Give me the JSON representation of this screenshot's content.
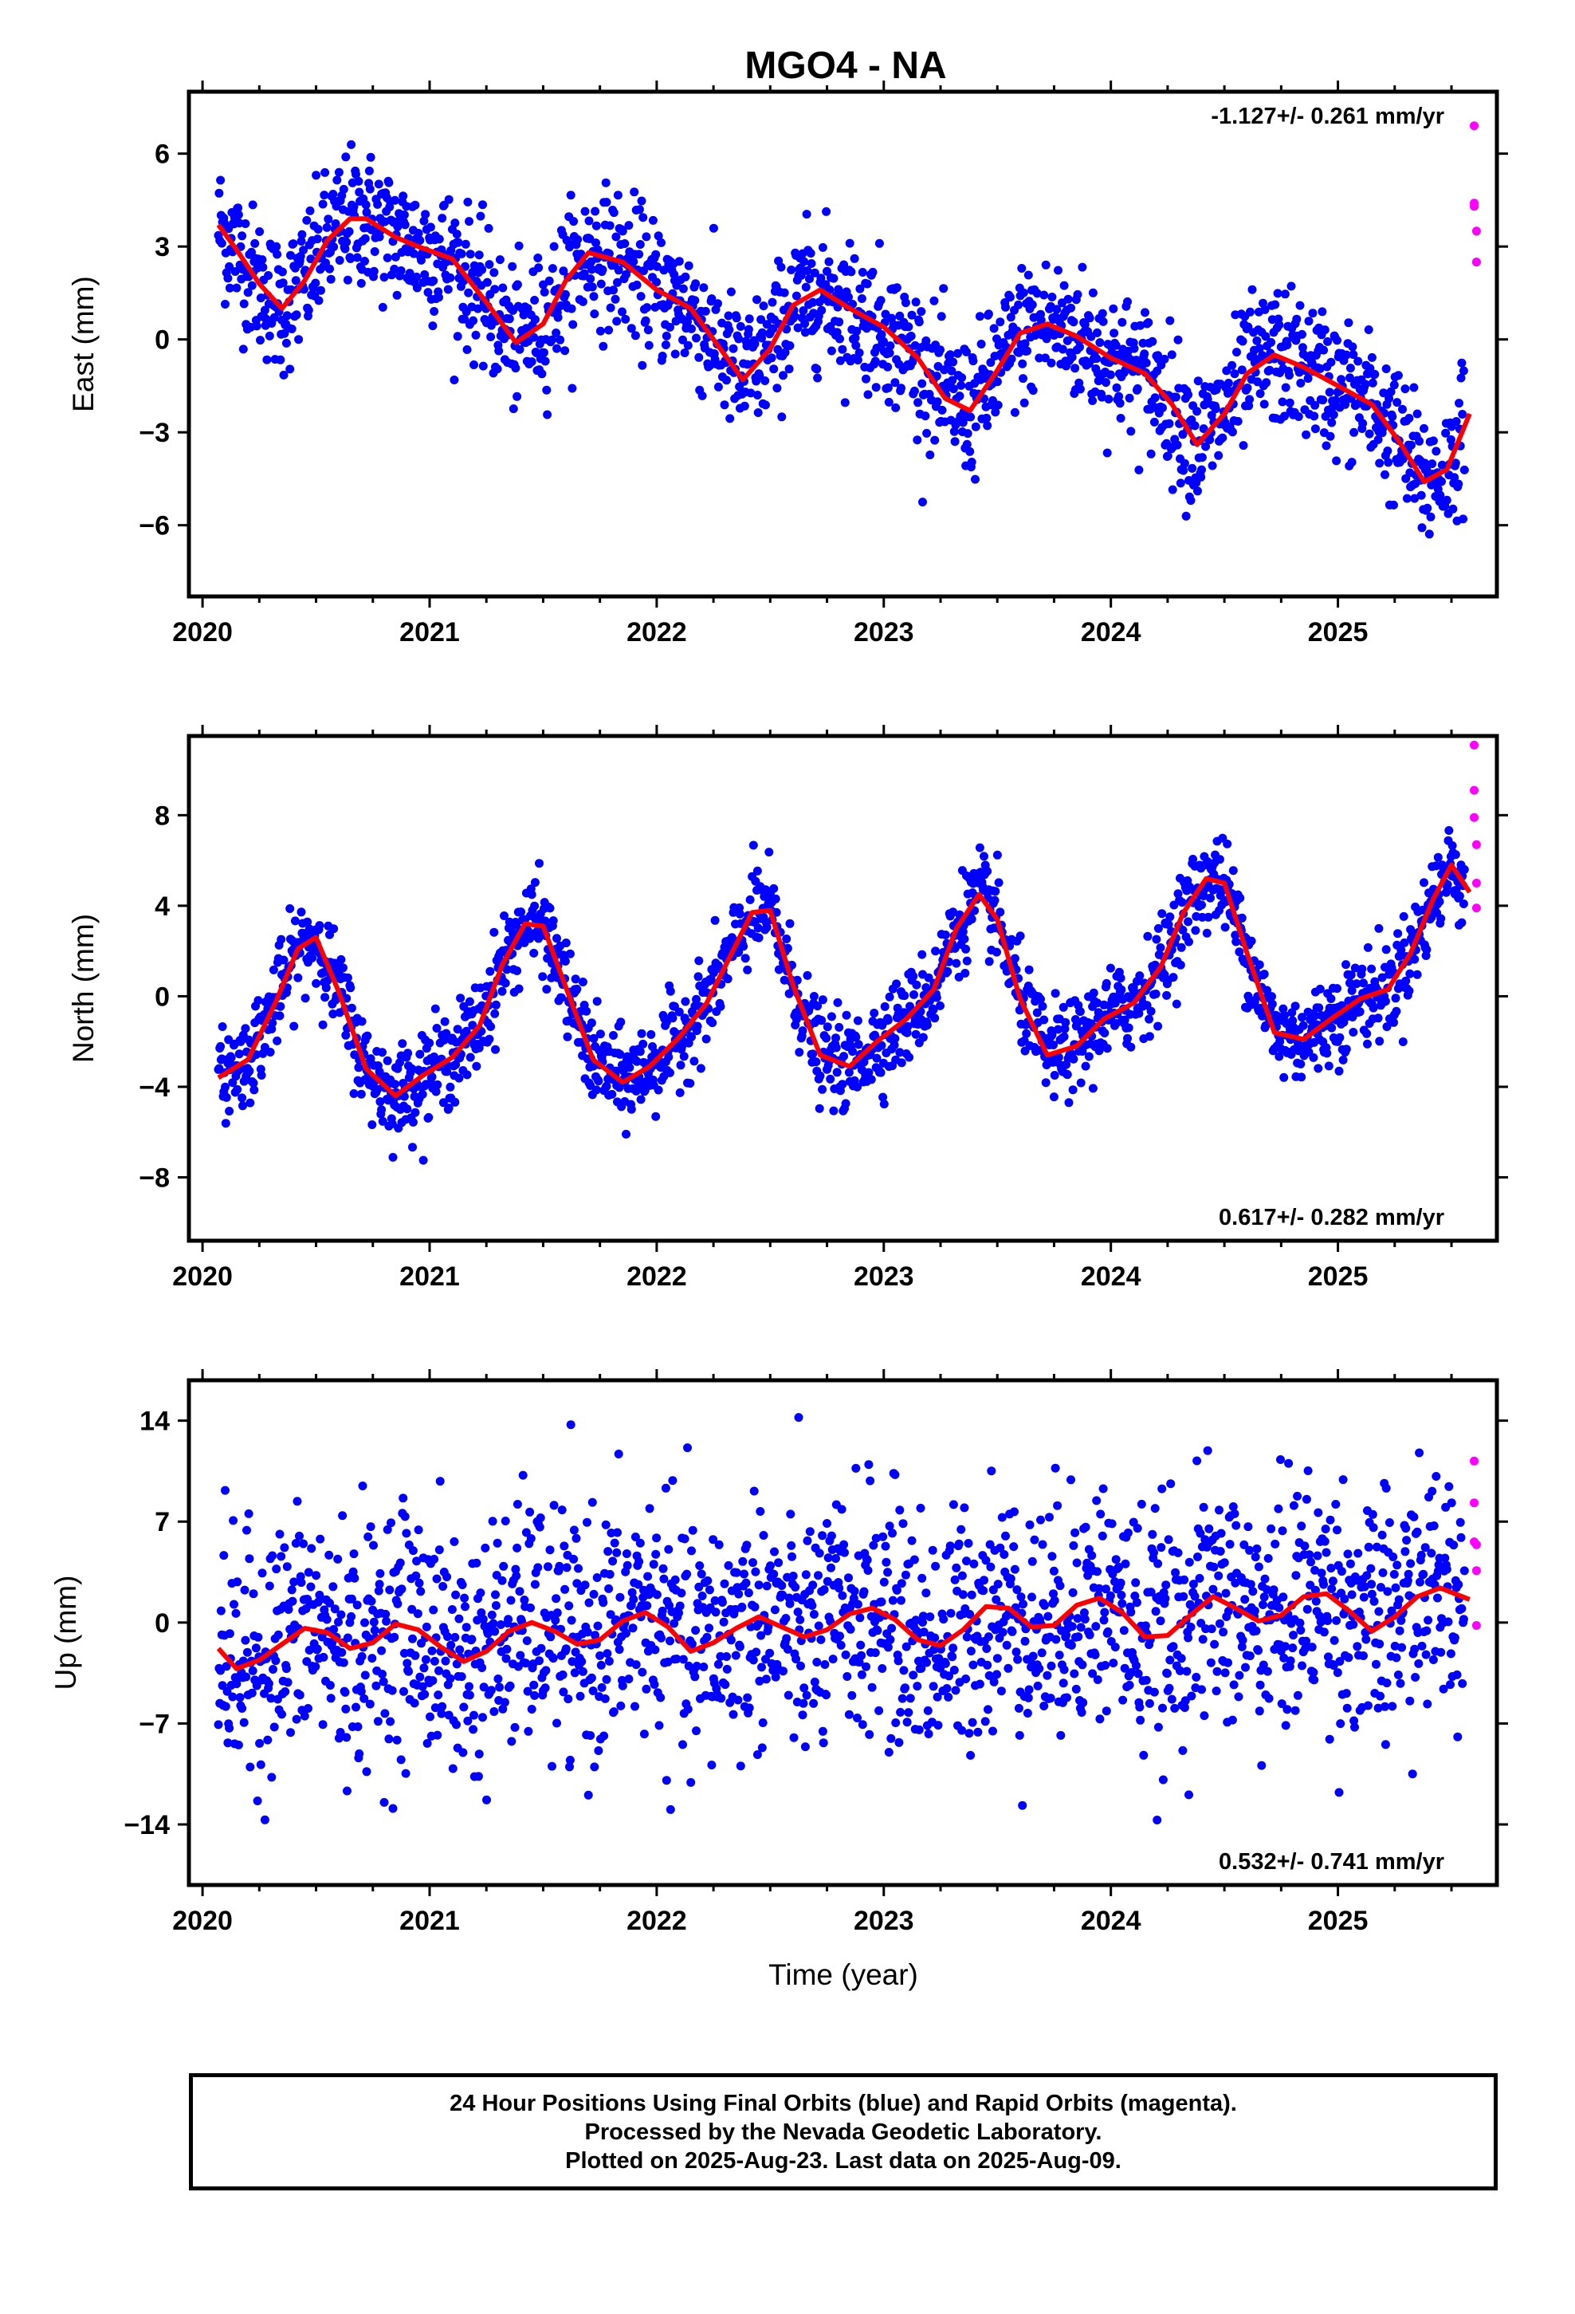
{
  "title": "MGO4 - NA",
  "xlabel": "Time (year)",
  "footer": {
    "line1": "24 Hour Positions Using Final Orbits (blue) and Rapid Orbits (magenta).",
    "line2": "Processed by the Nevada Geodetic Laboratory.",
    "line3": "Plotted on 2025-Aug-23. Last data on 2025-Aug-09."
  },
  "colors": {
    "final": "#0000ff",
    "rapid": "#ff00ff",
    "model": "#ff0000",
    "frame": "#000000"
  },
  "chart_data": [
    {
      "type": "scatter",
      "ylabel": "East (mm)",
      "rate": "-1.127+/- 0.261 mm/yr",
      "xlim": [
        2019.94,
        2025.7
      ],
      "ylim": [
        -8.3,
        8.0
      ],
      "xticks": [
        2020,
        2021,
        2022,
        2023,
        2024,
        2025
      ],
      "yticks": [
        -6,
        -3,
        0,
        3,
        6
      ],
      "grid": false,
      "series": [
        {
          "name": "Final Orbits (blue)",
          "points": "blue scatter of daily positions"
        },
        {
          "name": "Rapid Orbits (magenta)",
          "x": [
            2025.6,
            2025.6,
            2025.6,
            2025.61,
            2025.61,
            2025.61
          ],
          "y": [
            6.9,
            4.3,
            4.4,
            3.5,
            2.5,
            2.5
          ]
        }
      ],
      "model_curve": {
        "x": [
          2020.07,
          2020.15,
          2020.25,
          2020.35,
          2020.45,
          2020.55,
          2020.65,
          2020.72,
          2020.85,
          2020.95,
          2021.1,
          2021.25,
          2021.38,
          2021.5,
          2021.6,
          2021.7,
          2021.85,
          2022.0,
          2022.15,
          2022.27,
          2022.38,
          2022.5,
          2022.6,
          2022.72,
          2022.85,
          2023.0,
          2023.15,
          2023.27,
          2023.38,
          2023.5,
          2023.6,
          2023.72,
          2023.85,
          2024.0,
          2024.15,
          2024.27,
          2024.38,
          2024.5,
          2024.6,
          2024.72,
          2024.85,
          2025.0,
          2025.15,
          2025.27,
          2025.38,
          2025.48,
          2025.58
        ],
        "y": [
          3.7,
          2.9,
          1.8,
          1.0,
          1.9,
          3.2,
          3.9,
          3.9,
          3.3,
          3.0,
          2.6,
          1.2,
          -0.1,
          0.5,
          1.9,
          2.8,
          2.5,
          1.6,
          1.0,
          -0.2,
          -1.3,
          -0.3,
          1.1,
          1.6,
          1.0,
          0.4,
          -0.6,
          -1.9,
          -2.3,
          -1.0,
          0.2,
          0.5,
          0.1,
          -0.6,
          -1.1,
          -2.1,
          -3.4,
          -2.4,
          -1.1,
          -0.5,
          -0.9,
          -1.5,
          -2.1,
          -3.3,
          -4.6,
          -4.2,
          -2.4
        ]
      }
    },
    {
      "type": "scatter",
      "ylabel": "North (mm)",
      "rate": "0.617+/- 0.282 mm/yr",
      "xlim": [
        2019.94,
        2025.7
      ],
      "ylim": [
        -10.8,
        11.5
      ],
      "xticks": [
        2020,
        2021,
        2022,
        2023,
        2024,
        2025
      ],
      "yticks": [
        -8,
        -4,
        0,
        4,
        8
      ],
      "grid": false,
      "series": [
        {
          "name": "Final Orbits (blue)",
          "points": "blue scatter of daily positions"
        },
        {
          "name": "Rapid Orbits (magenta)",
          "x": [
            2025.6,
            2025.6,
            2025.6,
            2025.61,
            2025.61,
            2025.61
          ],
          "y": [
            11.1,
            9.1,
            7.9,
            6.7,
            5.0,
            3.9
          ]
        }
      ],
      "model_curve": {
        "x": [
          2020.07,
          2020.2,
          2020.32,
          2020.42,
          2020.5,
          2020.6,
          2020.72,
          2020.85,
          2020.97,
          2021.1,
          2021.22,
          2021.32,
          2021.42,
          2021.5,
          2021.6,
          2021.72,
          2021.85,
          2021.97,
          2022.1,
          2022.22,
          2022.32,
          2022.42,
          2022.5,
          2022.6,
          2022.72,
          2022.85,
          2022.97,
          2023.1,
          2023.22,
          2023.32,
          2023.42,
          2023.5,
          2023.6,
          2023.72,
          2023.85,
          2023.97,
          2024.1,
          2024.22,
          2024.32,
          2024.42,
          2024.5,
          2024.6,
          2024.72,
          2024.85,
          2024.97,
          2025.1,
          2025.22,
          2025.32,
          2025.42,
          2025.5,
          2025.58
        ],
        "y": [
          -3.6,
          -2.8,
          -0.3,
          2.1,
          2.6,
          0.2,
          -3.2,
          -4.4,
          -3.5,
          -2.7,
          -1.3,
          1.4,
          3.2,
          3.1,
          0.4,
          -2.8,
          -3.8,
          -3.1,
          -1.8,
          -0.3,
          1.7,
          3.7,
          3.8,
          0.5,
          -2.6,
          -3.1,
          -2.0,
          -1.0,
          0.3,
          3.0,
          4.5,
          3.4,
          -0.1,
          -2.6,
          -2.2,
          -1.0,
          -0.3,
          1.3,
          3.7,
          5.2,
          5.0,
          1.9,
          -1.6,
          -1.9,
          -1.0,
          -0.1,
          0.3,
          1.9,
          4.3,
          5.8,
          4.6
        ]
      }
    },
    {
      "type": "scatter",
      "ylabel": "Up (mm)",
      "rate": "0.532+/- 0.741 mm/yr",
      "xlim": [
        2019.94,
        2025.7
      ],
      "ylim": [
        -18.2,
        16.8
      ],
      "xticks": [
        2020,
        2021,
        2022,
        2023,
        2024,
        2025
      ],
      "yticks": [
        -14,
        -7,
        0,
        7,
        14
      ],
      "grid": false,
      "series": [
        {
          "name": "Final Orbits (blue)",
          "points": "blue scatter of daily positions"
        },
        {
          "name": "Rapid Orbits (magenta)",
          "x": [
            2025.6,
            2025.6,
            2025.6,
            2025.61,
            2025.61,
            2025.61
          ],
          "y": [
            11.2,
            8.3,
            5.6,
            5.4,
            3.6,
            -0.2
          ]
        }
      ],
      "model_curve": {
        "x": [
          2020.07,
          2020.15,
          2020.25,
          2020.35,
          2020.45,
          2020.55,
          2020.65,
          2020.75,
          2020.85,
          2020.95,
          2021.05,
          2021.15,
          2021.25,
          2021.35,
          2021.45,
          2021.55,
          2021.65,
          2021.75,
          2021.85,
          2021.95,
          2022.05,
          2022.15,
          2022.25,
          2022.35,
          2022.45,
          2022.55,
          2022.65,
          2022.75,
          2022.85,
          2022.95,
          2023.05,
          2023.15,
          2023.25,
          2023.35,
          2023.45,
          2023.55,
          2023.65,
          2023.75,
          2023.85,
          2023.95,
          2024.05,
          2024.15,
          2024.25,
          2024.35,
          2024.45,
          2024.55,
          2024.65,
          2024.75,
          2024.85,
          2024.95,
          2025.05,
          2025.15,
          2025.25,
          2025.35,
          2025.45,
          2025.58
        ],
        "y": [
          -1.8,
          -3.2,
          -2.6,
          -1.5,
          -0.4,
          -0.7,
          -1.8,
          -1.4,
          -0.1,
          -0.5,
          -1.7,
          -2.7,
          -2.0,
          -0.6,
          0.0,
          -0.6,
          -1.5,
          -1.2,
          0.1,
          0.7,
          -0.3,
          -2.0,
          -1.4,
          -0.4,
          0.4,
          -0.3,
          -1.0,
          -0.5,
          0.6,
          1.0,
          0.2,
          -1.2,
          -1.6,
          -0.5,
          1.1,
          1.0,
          -0.3,
          -0.2,
          1.2,
          1.7,
          0.7,
          -1.0,
          -0.9,
          0.5,
          1.8,
          1.0,
          0.1,
          0.5,
          1.8,
          2.0,
          0.8,
          -0.6,
          0.4,
          1.8,
          2.4,
          1.6
        ]
      }
    }
  ]
}
